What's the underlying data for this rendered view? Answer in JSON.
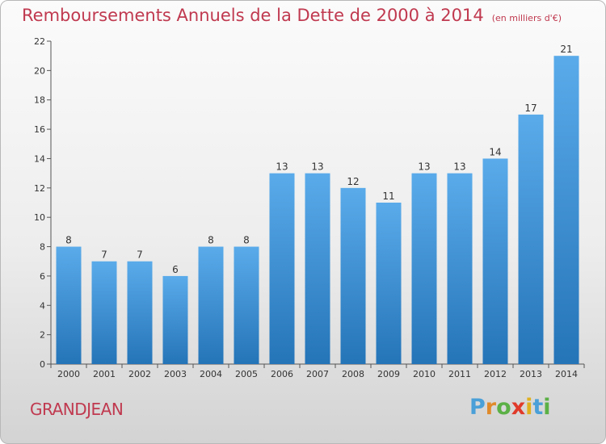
{
  "chart_data": {
    "type": "bar",
    "title": "Remboursements Annuels de la Dette de 2000 à 2014",
    "subtitle": "(en milliers d'€)",
    "categories": [
      "2000",
      "2001",
      "2002",
      "2003",
      "2004",
      "2005",
      "2006",
      "2007",
      "2008",
      "2009",
      "2010",
      "2011",
      "2012",
      "2013",
      "2014"
    ],
    "values": [
      8,
      7,
      7,
      6,
      8,
      8,
      13,
      13,
      12,
      11,
      13,
      13,
      14,
      17,
      21
    ],
    "ylim": [
      0,
      22
    ],
    "yticks": [
      0,
      2,
      4,
      6,
      8,
      10,
      12,
      14,
      16,
      18,
      20,
      22
    ],
    "grid": false,
    "legend": "none",
    "bar_color": "#3a8fd6"
  },
  "footer": {
    "commune": "GRANDJEAN",
    "logo": {
      "letters": [
        "P",
        "r",
        "o",
        "x",
        "i",
        "t",
        "i"
      ],
      "colors": [
        "#4aa0d8",
        "#e08a2a",
        "#5bb046",
        "#e03a2a",
        "#e0b020",
        "#4aa0d8",
        "#5bb046"
      ]
    }
  },
  "colors": {
    "title": "#c0394f",
    "axis": "#555555"
  }
}
